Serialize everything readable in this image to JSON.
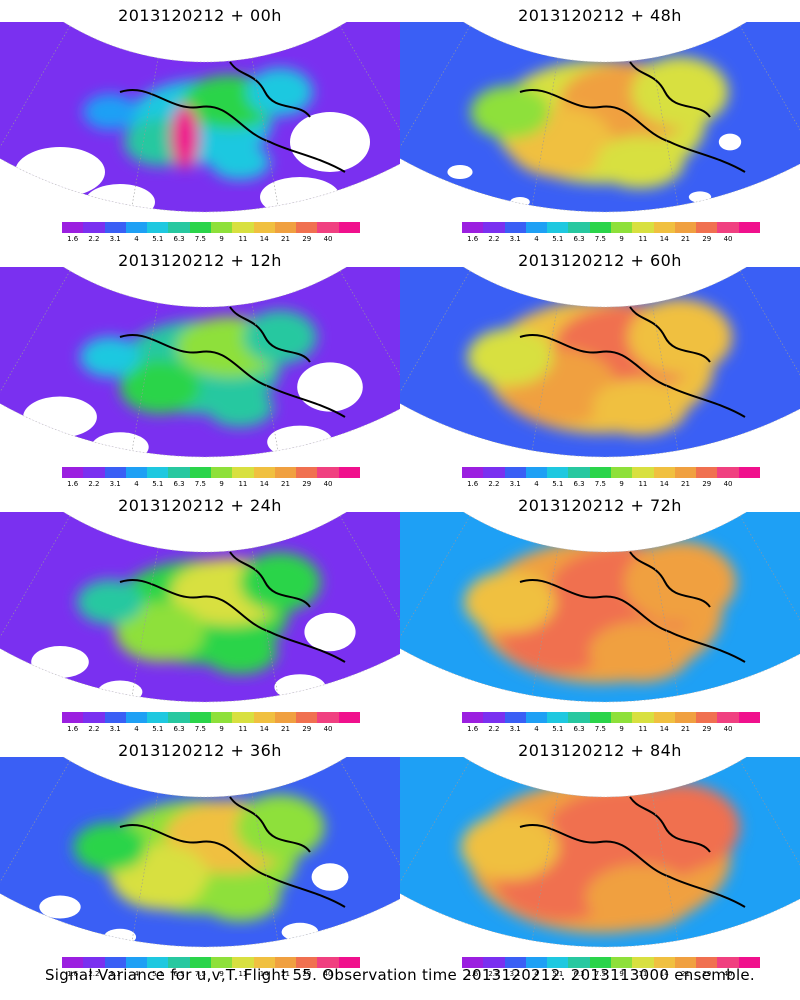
{
  "footer": "Signal Variance for u,v,T. Flight 55. Observation time 2013120212. 2013113000 ensemble.",
  "colorbar": {
    "labels": [
      "1.6",
      "2.2",
      "3.1",
      "4",
      "5.1",
      "6.3",
      "7.5",
      "9",
      "11",
      "14",
      "21",
      "29",
      "40"
    ],
    "colors": [
      "#9b1fe0",
      "#7a30f0",
      "#3a5ff5",
      "#1ea0f5",
      "#1ec8e0",
      "#27c8a0",
      "#2ad44a",
      "#8ee03a",
      "#d8e040",
      "#f0c040",
      "#f0a040",
      "#f07050",
      "#f04080",
      "#f0108c"
    ]
  },
  "panels": [
    {
      "title": "2013120212 + 00h",
      "level": 0
    },
    {
      "title": "2013120212 + 12h",
      "level": 1
    },
    {
      "title": "2013120212 + 24h",
      "level": 2
    },
    {
      "title": "2013120212 + 36h",
      "level": 3
    },
    {
      "title": "2013120212 + 48h",
      "level": 4
    },
    {
      "title": "2013120212 + 60h",
      "level": 5
    },
    {
      "title": "2013120212 + 72h",
      "level": 6
    },
    {
      "title": "2013120212 + 84h",
      "level": 7
    }
  ]
}
